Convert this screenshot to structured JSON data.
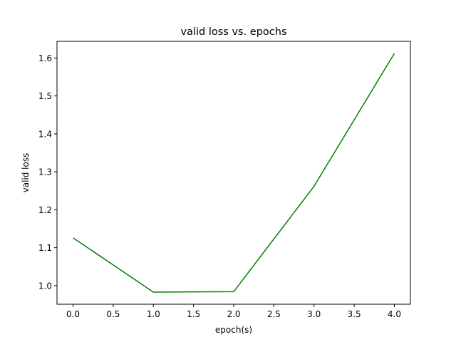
{
  "chart_data": {
    "type": "line",
    "title": "valid loss vs. epochs",
    "xlabel": "epoch(s)",
    "ylabel": "valid loss",
    "x": [
      0,
      1,
      2,
      3,
      4
    ],
    "series": [
      {
        "values": [
          1.126,
          0.983,
          0.984,
          1.262,
          1.612
        ],
        "color": "#008000"
      }
    ],
    "xlim": [
      -0.2,
      4.2
    ],
    "ylim": [
      0.951,
      1.644
    ],
    "xticks": [
      0.0,
      0.5,
      1.0,
      1.5,
      2.0,
      2.5,
      3.0,
      3.5,
      4.0
    ],
    "xtick_labels": [
      "0.0",
      "0.5",
      "1.0",
      "1.5",
      "2.0",
      "2.5",
      "3.0",
      "3.5",
      "4.0"
    ],
    "yticks": [
      1.0,
      1.1,
      1.2,
      1.3,
      1.4,
      1.5,
      1.6
    ],
    "ytick_labels": [
      "1.0",
      "1.1",
      "1.2",
      "1.3",
      "1.4",
      "1.5",
      "1.6"
    ],
    "grid": false,
    "legend": "none"
  }
}
